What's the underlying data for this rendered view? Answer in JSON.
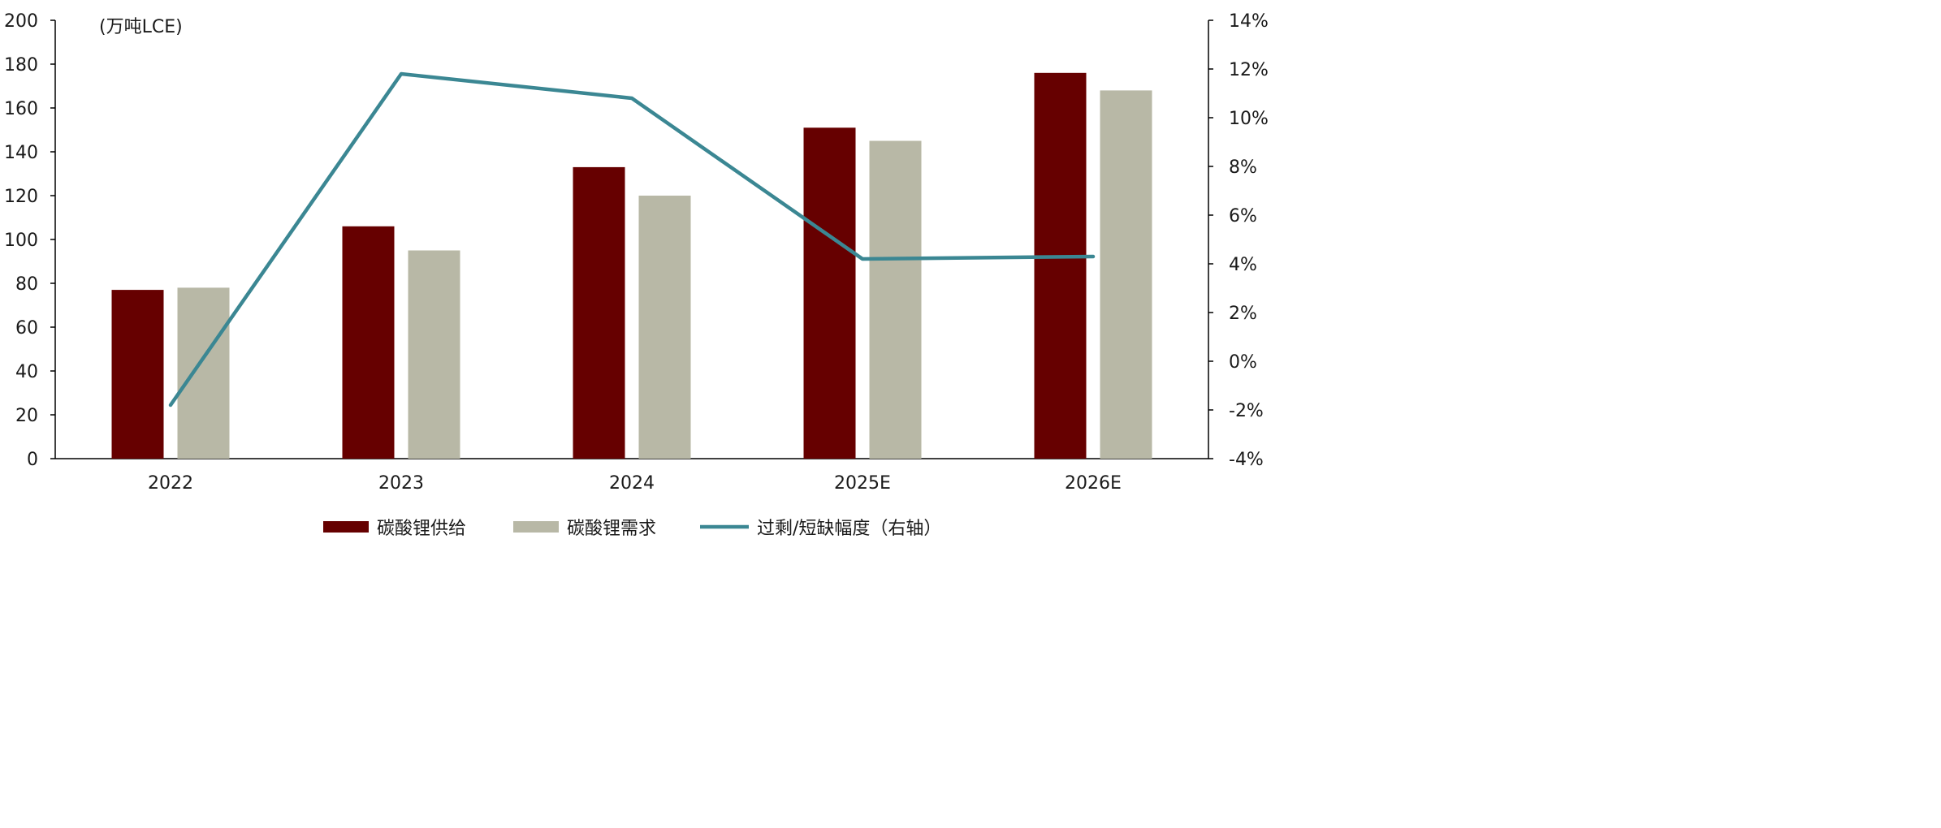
{
  "chart_data": {
    "type": "bar",
    "categories": [
      "2022",
      "2023",
      "2024",
      "2025E",
      "2026E"
    ],
    "series": [
      {
        "name": "碳酸锂供给",
        "kind": "bar",
        "axis": "left",
        "values": [
          77,
          106,
          133,
          151,
          176
        ]
      },
      {
        "name": "碳酸锂需求",
        "kind": "bar",
        "axis": "left",
        "values": [
          78,
          95,
          120,
          145,
          168
        ]
      },
      {
        "name": "过剩/短缺幅度（右轴）",
        "kind": "line",
        "axis": "right",
        "values": [
          -1.8,
          11.8,
          10.8,
          4.2,
          4.3
        ]
      }
    ],
    "ylabel": "(万吨LCE)",
    "ylim": [
      0,
      200
    ],
    "yticks": [
      "0",
      "20",
      "40",
      "60",
      "80",
      "100",
      "120",
      "140",
      "160",
      "180",
      "200"
    ],
    "y2lim": [
      -4,
      14
    ],
    "y2ticks": [
      "-4%",
      "-2%",
      "0%",
      "2%",
      "4%",
      "6%",
      "8%",
      "10%",
      "12%",
      "14%"
    ],
    "legend_position": "bottom",
    "grid": false,
    "colors": {
      "supply": "#660000",
      "demand": "#b8b8a6",
      "line": "#3b8793",
      "axis": "#000000"
    }
  }
}
